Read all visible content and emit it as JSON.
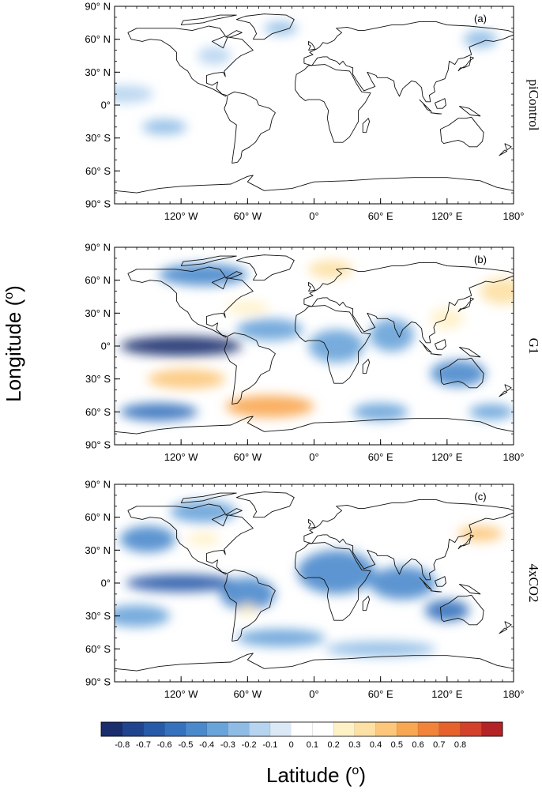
{
  "figure": {
    "ylabel": "Longitude (",
    "ylabel_sup": "o",
    "ylabel_tail": ")",
    "xlabel": "Latitude (",
    "xlabel_sup": "o",
    "xlabel_tail": ")"
  },
  "lat_ticks": [
    {
      "value": 90,
      "text": "90° N"
    },
    {
      "value": 60,
      "text": "60° N"
    },
    {
      "value": 30,
      "text": "30° N"
    },
    {
      "value": 0,
      "text": "0°"
    },
    {
      "value": -30,
      "text": "30° S"
    },
    {
      "value": -60,
      "text": "60° S"
    },
    {
      "value": -90,
      "text": "90° S"
    }
  ],
  "lon_ticks": [
    {
      "value": -120,
      "text": "120° W"
    },
    {
      "value": -60,
      "text": "60° W"
    },
    {
      "value": 0,
      "text": "0°"
    },
    {
      "value": 60,
      "text": "60° E"
    },
    {
      "value": 120,
      "text": "120° E"
    },
    {
      "value": 180,
      "text": "180°"
    }
  ],
  "panels": [
    {
      "tag": "(a)",
      "name": "piControl",
      "anomalies": [
        {
          "lon": -135,
          "lat": -20,
          "rx": 20,
          "ry": 7,
          "v": -0.25
        },
        {
          "lon": -170,
          "lat": 10,
          "rx": 25,
          "ry": 8,
          "v": -0.18
        },
        {
          "lon": -40,
          "lat": -40,
          "rx": 22,
          "ry": 8,
          "v": 0.15
        },
        {
          "lon": 40,
          "lat": 45,
          "rx": 15,
          "ry": 7,
          "v": 0.15
        },
        {
          "lon": 100,
          "lat": 10,
          "rx": 15,
          "ry": 10,
          "v": 0.14
        },
        {
          "lon": 60,
          "lat": -40,
          "rx": 25,
          "ry": 8,
          "v": 0.12
        },
        {
          "lon": -90,
          "lat": 45,
          "rx": 15,
          "ry": 8,
          "v": -0.15
        },
        {
          "lon": -30,
          "lat": 70,
          "rx": 15,
          "ry": 6,
          "v": -0.2
        },
        {
          "lon": 150,
          "lat": 60,
          "rx": 15,
          "ry": 8,
          "v": -0.2
        },
        {
          "lon": -40,
          "lat": -65,
          "rx": 30,
          "ry": 5,
          "v": 0.13
        }
      ]
    },
    {
      "tag": "(b)",
      "name": "G1",
      "anomalies": [
        {
          "lon": -120,
          "lat": 0,
          "rx": 55,
          "ry": 9,
          "v": -0.8
        },
        {
          "lon": -115,
          "lat": -30,
          "rx": 35,
          "ry": 9,
          "v": 0.5
        },
        {
          "lon": -40,
          "lat": -55,
          "rx": 40,
          "ry": 10,
          "v": 0.55
        },
        {
          "lon": -140,
          "lat": -60,
          "rx": 35,
          "ry": 8,
          "v": -0.55
        },
        {
          "lon": -100,
          "lat": 65,
          "rx": 40,
          "ry": 10,
          "v": -0.5
        },
        {
          "lon": -40,
          "lat": 15,
          "rx": 30,
          "ry": 10,
          "v": -0.35
        },
        {
          "lon": 20,
          "lat": 0,
          "rx": 25,
          "ry": 15,
          "v": -0.35
        },
        {
          "lon": 70,
          "lat": 10,
          "rx": 20,
          "ry": 15,
          "v": -0.35
        },
        {
          "lon": 130,
          "lat": -25,
          "rx": 25,
          "ry": 12,
          "v": -0.5
        },
        {
          "lon": 15,
          "lat": 70,
          "rx": 20,
          "ry": 8,
          "v": 0.35
        },
        {
          "lon": 170,
          "lat": 50,
          "rx": 20,
          "ry": 12,
          "v": 0.35
        },
        {
          "lon": 120,
          "lat": 25,
          "rx": 15,
          "ry": 10,
          "v": 0.25
        },
        {
          "lon": 60,
          "lat": -60,
          "rx": 25,
          "ry": 8,
          "v": -0.4
        },
        {
          "lon": 160,
          "lat": -60,
          "rx": 20,
          "ry": 7,
          "v": -0.35
        },
        {
          "lon": -60,
          "lat": 35,
          "rx": 20,
          "ry": 6,
          "v": 0.3
        }
      ]
    },
    {
      "tag": "(c)",
      "name": "4xCO2",
      "anomalies": [
        {
          "lon": -120,
          "lat": 0,
          "rx": 50,
          "ry": 8,
          "v": -0.7
        },
        {
          "lon": -150,
          "lat": 40,
          "rx": 25,
          "ry": 12,
          "v": -0.5
        },
        {
          "lon": 20,
          "lat": 10,
          "rx": 35,
          "ry": 20,
          "v": -0.5
        },
        {
          "lon": 120,
          "lat": -25,
          "rx": 20,
          "ry": 10,
          "v": -0.55
        },
        {
          "lon": 80,
          "lat": 0,
          "rx": 30,
          "ry": 15,
          "v": -0.45
        },
        {
          "lon": -60,
          "lat": -10,
          "rx": 25,
          "ry": 15,
          "v": -0.45
        },
        {
          "lon": -160,
          "lat": -30,
          "rx": 30,
          "ry": 10,
          "v": -0.35
        },
        {
          "lon": -30,
          "lat": -50,
          "rx": 40,
          "ry": 8,
          "v": -0.35
        },
        {
          "lon": 150,
          "lat": 45,
          "rx": 20,
          "ry": 7,
          "v": 0.5
        },
        {
          "lon": -100,
          "lat": 40,
          "rx": 15,
          "ry": 6,
          "v": 0.2
        },
        {
          "lon": -60,
          "lat": -25,
          "rx": 8,
          "ry": 6,
          "v": 0.25
        },
        {
          "lon": 60,
          "lat": -60,
          "rx": 50,
          "ry": 7,
          "v": -0.3
        },
        {
          "lon": -100,
          "lat": 65,
          "rx": 30,
          "ry": 10,
          "v": -0.4
        }
      ]
    }
  ],
  "colorbar": {
    "levels": [
      "-0.8",
      "-0.7",
      "-0.6",
      "-0.5",
      "-0.4",
      "-0.3",
      "-0.2",
      "-0.1",
      "0",
      "0.1",
      "0.2",
      "0.3",
      "0.4",
      "0.5",
      "0.6",
      "0.7",
      "0.8"
    ],
    "colors": [
      "#1a2d6d",
      "#21448f",
      "#275aa8",
      "#3571bc",
      "#4a89cc",
      "#68a3d9",
      "#8fbce5",
      "#b6d4ef",
      "#dbe9f6",
      "#ffffff",
      "#ffffff",
      "#fff1c6",
      "#fde0a3",
      "#fcc77a",
      "#f8a752",
      "#f1843a",
      "#e6612c",
      "#d3412a",
      "#b42325"
    ]
  }
}
